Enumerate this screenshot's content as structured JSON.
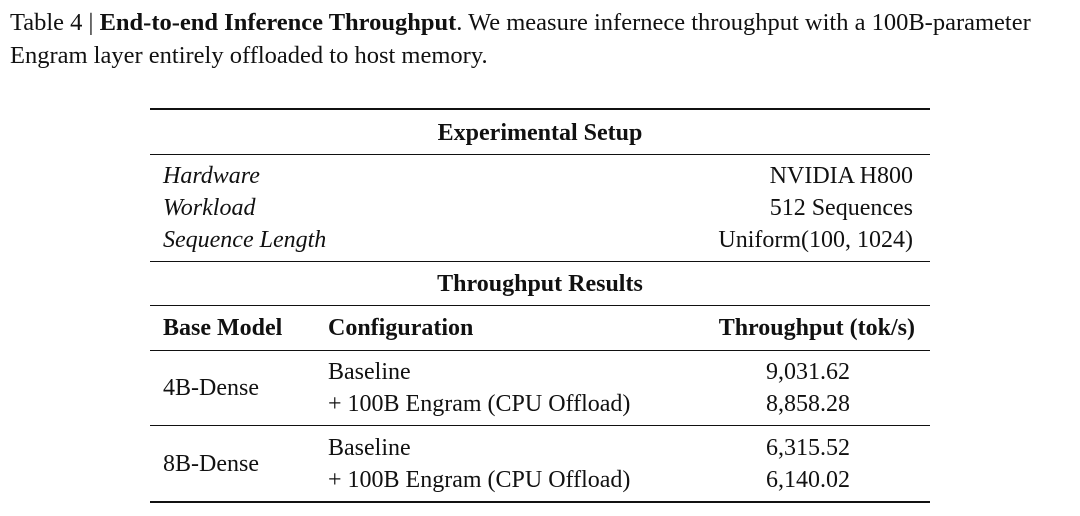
{
  "caption": {
    "label": "Table 4 | ",
    "title": "End-to-end Inference Throughput",
    "text": ". We measure infernece throughput with a 100B-parameter Engram layer entirely offloaded to host memory."
  },
  "setup": {
    "heading": "Experimental Setup",
    "rows": [
      {
        "key": "Hardware",
        "value": "NVIDIA H800"
      },
      {
        "key": "Workload",
        "value": "512 Sequences"
      },
      {
        "key": "Sequence Length",
        "value": "Uniform(100, 1024)"
      }
    ]
  },
  "results": {
    "heading": "Throughput Results",
    "columns": [
      "Base Model",
      "Configuration",
      "Throughput (tok/s)"
    ],
    "groups": [
      {
        "model": "4B-Dense",
        "rows": [
          {
            "config": "Baseline",
            "throughput": "9,031.62"
          },
          {
            "config": "+ 100B Engram (CPU Offload)",
            "throughput": "8,858.28"
          }
        ]
      },
      {
        "model": "8B-Dense",
        "rows": [
          {
            "config": "Baseline",
            "throughput": "6,315.52"
          },
          {
            "config": "+ 100B Engram (CPU Offload)",
            "throughput": "6,140.02"
          }
        ]
      }
    ]
  }
}
